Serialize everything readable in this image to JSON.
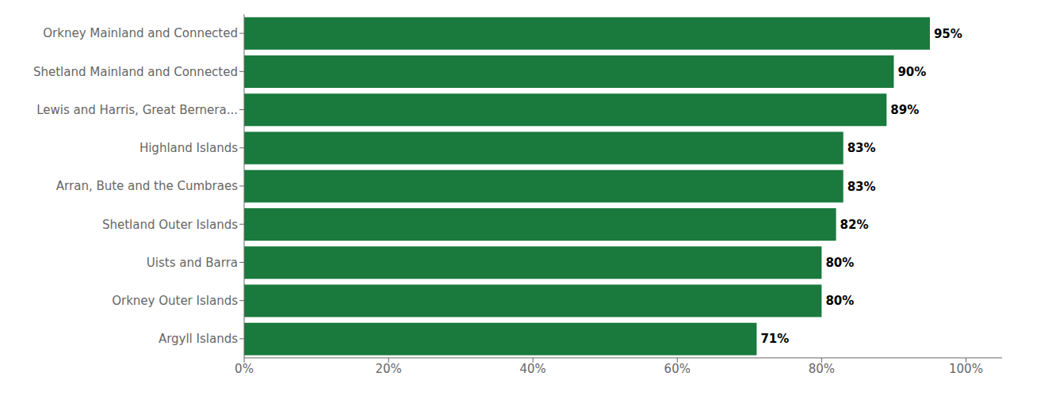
{
  "chart_data": {
    "type": "bar",
    "orientation": "horizontal",
    "categories": [
      "Orkney Mainland and Connected",
      "Shetland Mainland and Connected",
      "Lewis and Harris, Great Bernera...",
      "Highland Islands",
      "Arran, Bute and the Cumbraes",
      "Shetland Outer Islands",
      "Uists and Barra",
      "Orkney Outer Islands",
      "Argyll Islands"
    ],
    "values": [
      95,
      90,
      89,
      83,
      83,
      82,
      80,
      80,
      71
    ],
    "value_labels": [
      "95%",
      "90%",
      "89%",
      "83%",
      "83%",
      "82%",
      "80%",
      "80%",
      "71%"
    ],
    "data_labels": true,
    "color": "#1a7a3e",
    "xlim": [
      0,
      105
    ],
    "xticks": [
      {
        "value": 0,
        "label": "0%"
      },
      {
        "value": 20,
        "label": "20%"
      },
      {
        "value": 40,
        "label": "40%"
      },
      {
        "value": 60,
        "label": "60%"
      },
      {
        "value": 80,
        "label": "80%"
      },
      {
        "value": 100,
        "label": "100%"
      }
    ],
    "grid": false
  }
}
